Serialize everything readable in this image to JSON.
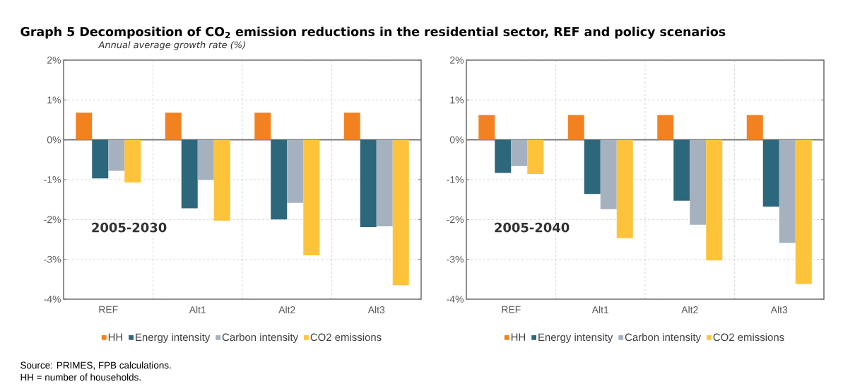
{
  "chart_data": [
    {
      "type": "bar",
      "title": "Graph 5 Decomposition of CO$_{2}$ emission reductions in the residential sector, REF and policy scenarios",
      "subtitle": "Annual average growth rate (%)",
      "annotations": [
        "2005-2030",
        "Source: PRIMES, FPB calculations.",
        "HH = number of households."
      ],
      "categories": [
        "REF",
        "Alt1",
        "Alt2",
        "Alt3"
      ],
      "series": [
        {
          "name": "HH",
          "color": "#f28220",
          "values": [
            0.68,
            0.68,
            0.68,
            0.68
          ]
        },
        {
          "name": "Energy intensity",
          "color": "#2c677c",
          "values": [
            -0.97,
            -1.72,
            -2.0,
            -2.19
          ]
        },
        {
          "name": "Carbon intensity",
          "color": "#a5b1bf",
          "values": [
            -0.78,
            -1.01,
            -1.58,
            -2.17
          ]
        },
        {
          "name": "CO2 emissions",
          "color": "#fdc43b",
          "values": [
            -1.07,
            -2.03,
            -2.9,
            -3.65
          ]
        }
      ],
      "ylim": [
        -4,
        2
      ],
      "yticks": [
        {
          "value": -4,
          "label": "-4%"
        },
        {
          "value": -3,
          "label": "-3%"
        },
        {
          "value": -2,
          "label": "-2%"
        },
        {
          "value": -1,
          "label": "-1%"
        },
        {
          "value": 0,
          "label": "0%"
        },
        {
          "value": 1,
          "label": "1%"
        },
        {
          "value": 2,
          "label": "2%"
        }
      ],
      "grid": true,
      "legend": "bottom"
    },
    {
      "type": "bar",
      "annotations": [
        "2005-2040"
      ],
      "categories": [
        "REF",
        "Alt1",
        "Alt2",
        "Alt3"
      ],
      "series": [
        {
          "name": "HH",
          "color": "#f28220",
          "values": [
            0.62,
            0.62,
            0.62,
            0.62
          ]
        },
        {
          "name": "Energy intensity",
          "color": "#2c677c",
          "values": [
            -0.83,
            -1.36,
            -1.53,
            -1.68
          ]
        },
        {
          "name": "Carbon intensity",
          "color": "#a5b1bf",
          "values": [
            -0.66,
            -1.74,
            -2.13,
            -2.59
          ]
        },
        {
          "name": "CO2 emissions",
          "color": "#fdc43b",
          "values": [
            -0.86,
            -2.47,
            -3.03,
            -3.62
          ]
        }
      ],
      "ylim": [
        -4,
        2
      ],
      "yticks": [
        {
          "value": -4,
          "label": "-4%"
        },
        {
          "value": -3,
          "label": "-3%"
        },
        {
          "value": -2,
          "label": "-2%"
        },
        {
          "value": -1,
          "label": "-1%"
        },
        {
          "value": 0,
          "label": "0%"
        },
        {
          "value": 1,
          "label": "1%"
        },
        {
          "value": 2,
          "label": "2%"
        }
      ],
      "grid": true,
      "legend": "bottom"
    }
  ]
}
